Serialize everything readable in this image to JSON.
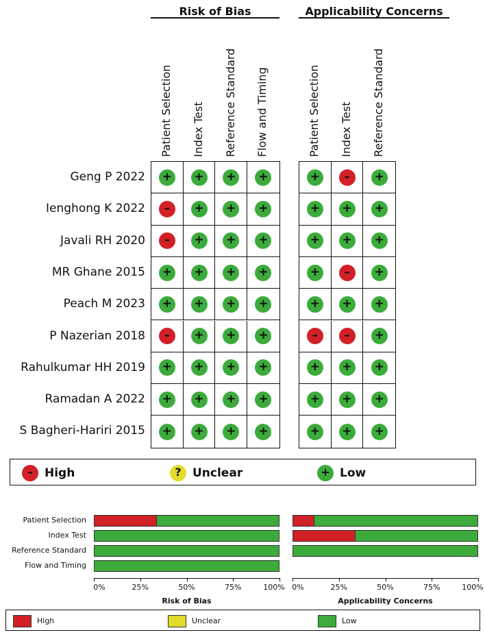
{
  "sections": {
    "risk_of_bias": "Risk of Bias",
    "applicability": "Applicability Concerns"
  },
  "rob_domains": [
    "Patient Selection",
    "Index Test",
    "Reference Standard",
    "Flow and Timing"
  ],
  "app_domains": [
    "Patient Selection",
    "Index Test",
    "Reference Standard"
  ],
  "studies": [
    {
      "name": "Geng P 2022",
      "rob": [
        "low",
        "low",
        "low",
        "low"
      ],
      "app": [
        "low",
        "high",
        "low"
      ]
    },
    {
      "name": "Ienghong K 2022",
      "rob": [
        "high",
        "low",
        "low",
        "low"
      ],
      "app": [
        "low",
        "low",
        "low"
      ]
    },
    {
      "name": "Javali RH 2020",
      "rob": [
        "high",
        "low",
        "low",
        "low"
      ],
      "app": [
        "low",
        "low",
        "low"
      ]
    },
    {
      "name": "MR Ghane 2015",
      "rob": [
        "low",
        "low",
        "low",
        "low"
      ],
      "app": [
        "low",
        "high",
        "low"
      ]
    },
    {
      "name": "Peach M 2023",
      "rob": [
        "low",
        "low",
        "low",
        "low"
      ],
      "app": [
        "low",
        "low",
        "low"
      ]
    },
    {
      "name": "P Nazerian 2018",
      "rob": [
        "high",
        "low",
        "low",
        "low"
      ],
      "app": [
        "high",
        "high",
        "low"
      ]
    },
    {
      "name": "Rahulkumar HH 2019",
      "rob": [
        "low",
        "low",
        "low",
        "low"
      ],
      "app": [
        "low",
        "low",
        "low"
      ]
    },
    {
      "name": "Ramadan A 2022",
      "rob": [
        "low",
        "low",
        "low",
        "low"
      ],
      "app": [
        "low",
        "low",
        "low"
      ]
    },
    {
      "name": "S Bagheri-Hariri 2015",
      "rob": [
        "low",
        "low",
        "low",
        "low"
      ],
      "app": [
        "low",
        "low",
        "low"
      ]
    }
  ],
  "symbols": {
    "high": "–",
    "unclear": "?",
    "low": "+"
  },
  "legend": {
    "high": "High",
    "unclear": "Unclear",
    "low": "Low"
  },
  "colors": {
    "high": "#d12026",
    "unclear": "#e2dc2a",
    "low": "#3cab3c"
  },
  "chart_data": [
    {
      "type": "bar",
      "title": "Risk of Bias",
      "categories": [
        "Patient Selection",
        "Index Test",
        "Reference Standard",
        "Flow and Timing"
      ],
      "series": [
        {
          "name": "High",
          "values": [
            33.3,
            0,
            0,
            0
          ]
        },
        {
          "name": "Unclear",
          "values": [
            0,
            0,
            0,
            0
          ]
        },
        {
          "name": "Low",
          "values": [
            66.7,
            100,
            100,
            100
          ]
        }
      ],
      "xlim": [
        0,
        100
      ],
      "ticks": [
        "0%",
        "25%",
        "50%",
        "75%",
        "100%"
      ]
    },
    {
      "type": "bar",
      "title": "Applicability Concerns",
      "categories": [
        "Patient Selection",
        "Index Test",
        "Reference Standard"
      ],
      "series": [
        {
          "name": "High",
          "values": [
            11.1,
            33.3,
            0
          ]
        },
        {
          "name": "Unclear",
          "values": [
            0,
            0,
            0
          ]
        },
        {
          "name": "Low",
          "values": [
            88.9,
            66.7,
            100
          ]
        }
      ],
      "xlim": [
        0,
        100
      ],
      "ticks": [
        "0%",
        "25%",
        "50%",
        "75%",
        "100%"
      ]
    }
  ]
}
